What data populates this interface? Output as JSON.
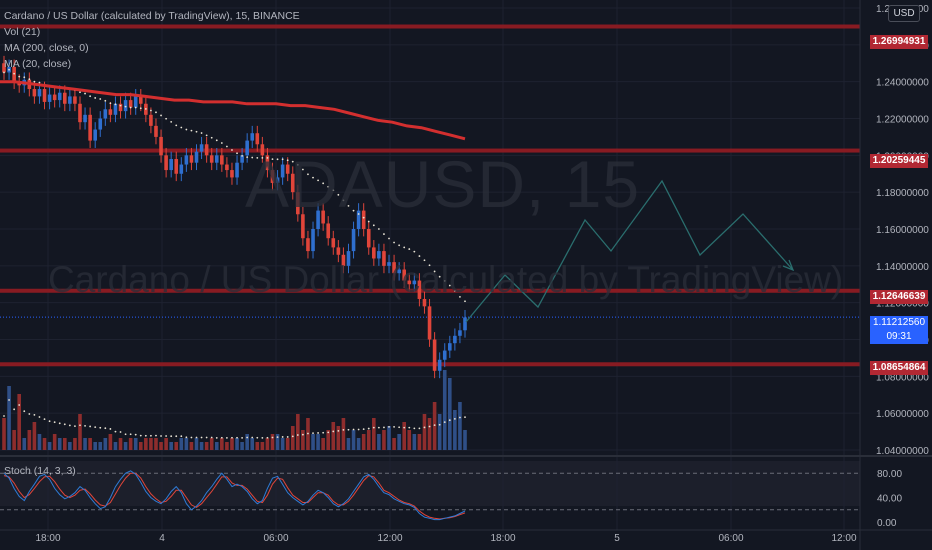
{
  "legend": {
    "symbol": "Cardano / US Dollar (calculated by TradingView), 15, BINANCE",
    "vol": "Vol (21)",
    "ma200": "MA (200, close, 0)",
    "ma20": "MA (20, close)"
  },
  "stoch_label": "Stoch (14, 3, 3)",
  "watermark": {
    "ticker": "ADAUSD, 15",
    "name": "Cardano / US Dollar (calculated by TradingView)"
  },
  "currency_button": "USD",
  "colors": {
    "background": "#131722",
    "up": "#2f6fcf",
    "down": "#e0453a",
    "ma200": "#d32f2f",
    "level_line": "#8e1b23",
    "stoch_k": "#2e7bd6",
    "stoch_d": "#e0453a",
    "projection": "#2a6e6e"
  },
  "chart_data": {
    "type": "candlestick",
    "price_axis": {
      "ticks": [
        "1.28000000",
        "1.26000000",
        "1.24000000",
        "1.22000000",
        "1.20000000",
        "1.18000000",
        "1.16000000",
        "1.14000000",
        "1.12000000",
        "1.10000000",
        "1.08000000",
        "1.06000000",
        "1.04000000"
      ],
      "ylim": [
        1.04,
        1.28
      ]
    },
    "time_axis": {
      "ticks": [
        "18:00",
        "4",
        "06:00",
        "12:00",
        "18:00",
        "5",
        "06:00",
        "12:00"
      ]
    },
    "horizontal_levels": [
      {
        "label": "1.26994931",
        "value": 1.26994931
      },
      {
        "label": "1.20259445",
        "value": 1.20259445
      },
      {
        "label": "1.12646639",
        "value": 1.12646639
      },
      {
        "label": "1.08654864",
        "value": 1.08654864
      }
    ],
    "last_price": {
      "label": "1.11212560",
      "countdown": "09:31",
      "value": 1.1121256
    },
    "closes": [
      1.245,
      1.248,
      1.24,
      1.238,
      1.241,
      1.236,
      1.232,
      1.236,
      1.229,
      1.233,
      1.23,
      1.234,
      1.228,
      1.232,
      1.228,
      1.218,
      1.222,
      1.208,
      1.214,
      1.22,
      1.225,
      1.222,
      1.228,
      1.224,
      1.23,
      1.226,
      1.232,
      1.228,
      1.222,
      1.216,
      1.21,
      1.2,
      1.192,
      1.198,
      1.19,
      1.195,
      1.2,
      1.196,
      1.202,
      1.206,
      1.2,
      1.196,
      1.2,
      1.195,
      1.192,
      1.188,
      1.196,
      1.2,
      1.208,
      1.212,
      1.206,
      1.2,
      1.192,
      1.185,
      1.188,
      1.195,
      1.19,
      1.18,
      1.168,
      1.155,
      1.148,
      1.16,
      1.17,
      1.163,
      1.155,
      1.15,
      1.146,
      1.14,
      1.148,
      1.16,
      1.17,
      1.16,
      1.15,
      1.144,
      1.148,
      1.14,
      1.142,
      1.136,
      1.138,
      1.132,
      1.13,
      1.132,
      1.122,
      1.118,
      1.1,
      1.083,
      1.089,
      1.094,
      1.098,
      1.102,
      1.105,
      1.112
    ],
    "opens_note": "",
    "volumes": [
      8,
      16,
      5,
      14,
      3,
      5,
      7,
      4,
      3,
      2,
      4,
      3,
      3,
      2,
      3,
      9,
      3,
      3,
      2,
      2,
      3,
      4,
      2,
      3,
      2,
      3,
      3,
      2,
      3,
      3,
      3,
      2,
      3,
      2,
      2,
      3,
      3,
      2,
      3,
      2,
      2,
      3,
      2,
      3,
      2,
      3,
      3,
      2,
      4,
      3,
      2,
      2,
      3,
      4,
      4,
      3,
      3,
      6,
      9,
      5,
      8,
      4,
      4,
      3,
      5,
      7,
      6,
      8,
      3,
      5,
      3,
      4,
      5,
      8,
      4,
      5,
      6,
      3,
      4,
      7,
      5,
      4,
      4,
      9,
      8,
      12,
      9,
      20,
      18,
      10,
      12,
      5
    ],
    "ma200": [
      1.24,
      1.24,
      1.239,
      1.238,
      1.237,
      1.236,
      1.235,
      1.234,
      1.233,
      1.233,
      1.232,
      1.231,
      1.23,
      1.23,
      1.229,
      1.229,
      1.229,
      1.228,
      1.228,
      1.228,
      1.227,
      1.227,
      1.226,
      1.225,
      1.223,
      1.221,
      1.219,
      1.218,
      1.216,
      1.215,
      1.213,
      1.211,
      1.209
    ],
    "stochastic": {
      "ylim": [
        0,
        100
      ],
      "ticks": [
        "80.00",
        "40.00",
        "0.00"
      ],
      "k": [
        80,
        72,
        55,
        42,
        35,
        50,
        62,
        75,
        78,
        70,
        55,
        45,
        38,
        42,
        48,
        58,
        52,
        40,
        30,
        22,
        25,
        40,
        58,
        70,
        80,
        84,
        78,
        65,
        50,
        40,
        34,
        30,
        38,
        50,
        58,
        48,
        30,
        20,
        26,
        35,
        48,
        58,
        70,
        80,
        70,
        58,
        62,
        58,
        50,
        38,
        30,
        35,
        55,
        72,
        75,
        62,
        48,
        40,
        34,
        28,
        34,
        44,
        52,
        48,
        40,
        30,
        25,
        30,
        38,
        50,
        62,
        74,
        78,
        70,
        58,
        48,
        45,
        38,
        34,
        30,
        28,
        24,
        14,
        8,
        6,
        4,
        4,
        6,
        8,
        10,
        14,
        18
      ],
      "d": [
        76,
        74,
        64,
        50,
        40,
        45,
        55,
        66,
        74,
        75,
        66,
        54,
        44,
        40,
        44,
        52,
        54,
        46,
        36,
        28,
        26,
        32,
        46,
        60,
        72,
        80,
        80,
        72,
        58,
        46,
        38,
        32,
        34,
        42,
        52,
        52,
        40,
        28,
        24,
        30,
        40,
        50,
        62,
        74,
        74,
        64,
        60,
        60,
        54,
        44,
        34,
        32,
        44,
        62,
        72,
        70,
        56,
        44,
        38,
        32,
        32,
        40,
        48,
        48,
        44,
        34,
        28,
        28,
        34,
        44,
        56,
        68,
        76,
        74,
        64,
        52,
        48,
        42,
        36,
        32,
        30,
        26,
        18,
        12,
        8,
        6,
        5,
        6,
        7,
        9,
        12,
        15
      ]
    }
  }
}
